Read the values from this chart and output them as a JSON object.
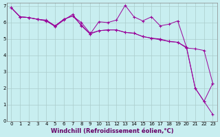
{
  "xlabel": "Windchill (Refroidissement éolien,°C)",
  "background_color": "#c8eef0",
  "grid_color": "#aacccc",
  "line_color": "#990099",
  "xlim": [
    -0.5,
    23.5
  ],
  "ylim": [
    0,
    7.2
  ],
  "xticks": [
    0,
    1,
    2,
    3,
    4,
    5,
    6,
    7,
    8,
    9,
    10,
    11,
    12,
    13,
    14,
    15,
    16,
    17,
    18,
    19,
    20,
    21,
    22,
    23
  ],
  "yticks": [
    0,
    1,
    2,
    3,
    4,
    5,
    6,
    7
  ],
  "line1_x": [
    0,
    1,
    2,
    3,
    4,
    5,
    6,
    7,
    8,
    9,
    10,
    11,
    12,
    13,
    14,
    15,
    16,
    17,
    18,
    19,
    20,
    21,
    22,
    23
  ],
  "line1_y": [
    6.9,
    6.35,
    6.3,
    6.2,
    6.15,
    5.8,
    6.2,
    6.4,
    5.85,
    5.3,
    5.5,
    5.55,
    5.55,
    5.4,
    5.35,
    5.15,
    5.05,
    5.0,
    4.85,
    4.8,
    4.5,
    2.0,
    1.2,
    2.3
  ],
  "line2_x": [
    0,
    1,
    2,
    3,
    4,
    5,
    6,
    7,
    8,
    9,
    10,
    11,
    12,
    13,
    14,
    15,
    16,
    17,
    18,
    19,
    20,
    21,
    22,
    23
  ],
  "line2_y": [
    6.9,
    6.35,
    6.3,
    6.2,
    6.1,
    5.75,
    6.15,
    6.5,
    5.8,
    5.3,
    6.05,
    6.0,
    6.15,
    7.05,
    6.35,
    6.1,
    6.35,
    5.8,
    5.9,
    6.1,
    4.5,
    2.0,
    1.2,
    0.4
  ],
  "line3_x": [
    0,
    1,
    2,
    3,
    4,
    5,
    6,
    7,
    8,
    9,
    10,
    11,
    12,
    13,
    14,
    15,
    16,
    17,
    18,
    19,
    20,
    21,
    22,
    23
  ],
  "line3_y": [
    6.9,
    6.35,
    6.3,
    6.2,
    6.1,
    5.8,
    6.2,
    6.4,
    6.0,
    5.35,
    5.5,
    5.55,
    5.55,
    5.4,
    5.35,
    5.15,
    5.05,
    4.95,
    4.85,
    4.8,
    4.45,
    4.4,
    4.3,
    2.3
  ],
  "xlabel_fontsize": 6,
  "tick_fontsize": 5
}
